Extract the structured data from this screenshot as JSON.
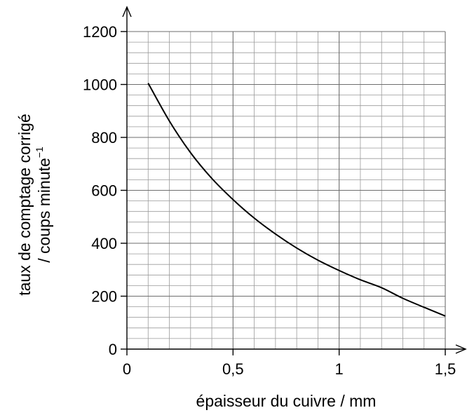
{
  "chart_data": {
    "type": "line",
    "xlabel": "épaisseur du cuivre / mm",
    "ylabel_line1": "taux de comptage corrigé",
    "ylabel_line2": "/ coups minute",
    "ylabel_superscript": "−1",
    "xlim": [
      0,
      1.5
    ],
    "ylim": [
      0,
      1200
    ],
    "x_ticks": [
      0,
      0.5,
      1,
      1.5
    ],
    "x_tick_labels": [
      "0",
      "0,5",
      "1",
      "1,5"
    ],
    "y_ticks": [
      0,
      200,
      400,
      600,
      800,
      1000,
      1200
    ],
    "y_tick_labels": [
      "0",
      "200",
      "400",
      "600",
      "800",
      "1000",
      "1200"
    ],
    "x_minor_step": 0.1,
    "y_minor_step": 40,
    "grid": true,
    "series": [
      {
        "x": [
          0.1,
          0.2,
          0.3,
          0.4,
          0.5,
          0.6,
          0.7,
          0.8,
          0.9,
          1.0,
          1.1,
          1.2,
          1.3,
          1.4,
          1.5
        ],
        "y": [
          1005,
          862,
          742,
          645,
          565,
          495,
          435,
          382,
          336,
          297,
          262,
          232,
          192,
          158,
          125
        ]
      }
    ],
    "color": "#000000"
  }
}
